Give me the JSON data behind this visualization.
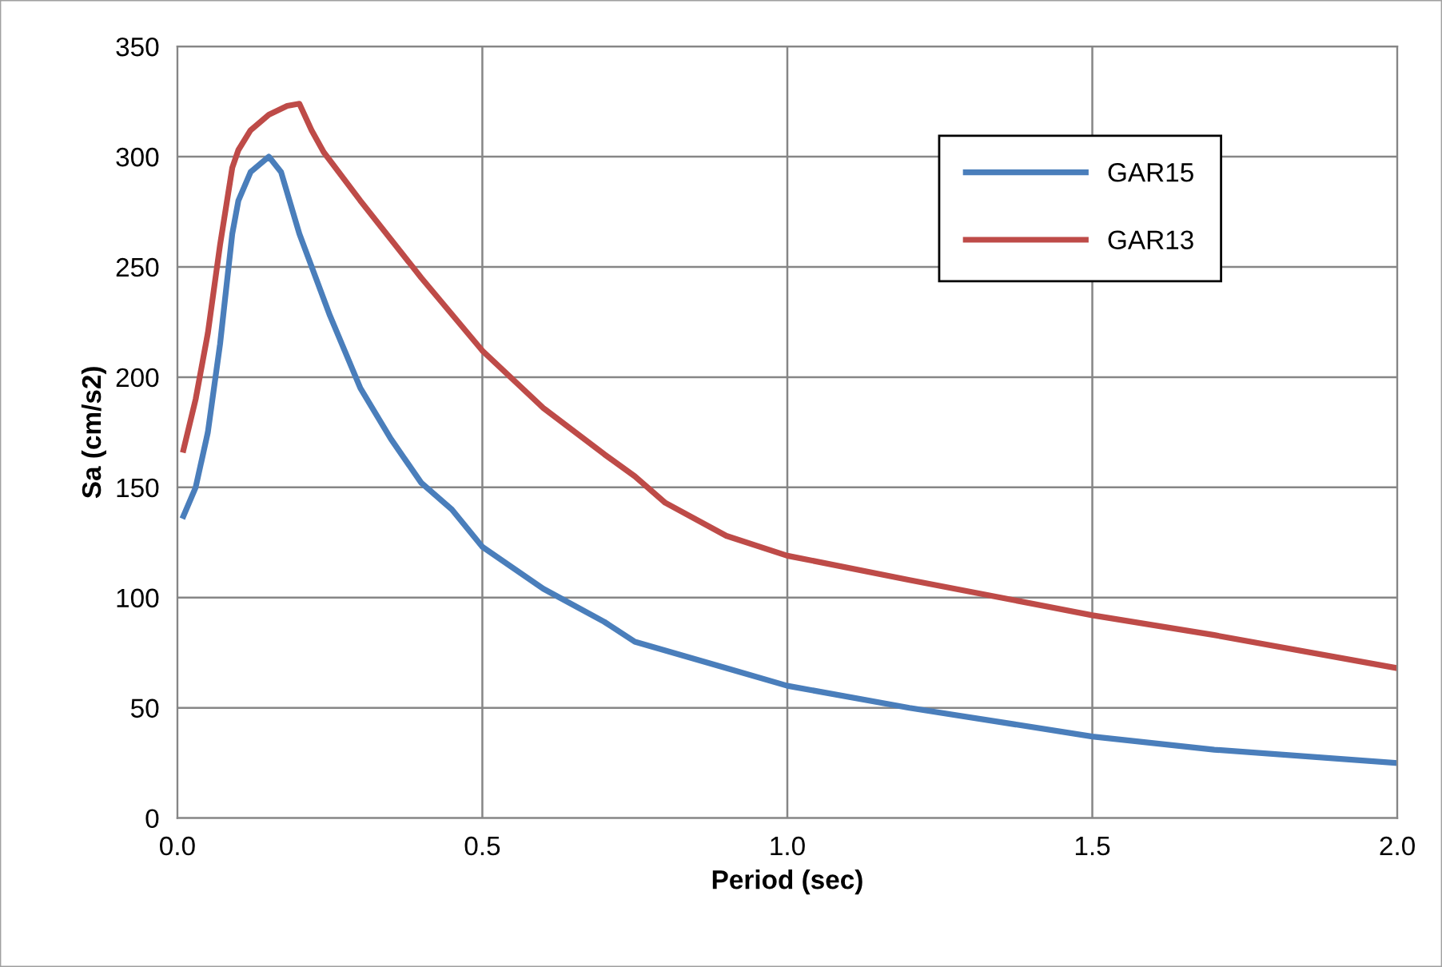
{
  "chart_data": {
    "type": "line",
    "xlabel": "Period (sec)",
    "ylabel": "Sa (cm/s2)",
    "xlim": [
      0,
      2
    ],
    "xticks": [
      {
        "value": 0,
        "label": "0.0"
      },
      {
        "value": 0.5,
        "label": "0.5"
      },
      {
        "value": 1,
        "label": "1.0"
      },
      {
        "value": 1.5,
        "label": "1.5"
      },
      {
        "value": 2,
        "label": "2.0"
      }
    ],
    "ylim": [
      0,
      350
    ],
    "yticks": [
      0,
      50,
      100,
      150,
      200,
      250,
      300,
      350
    ],
    "grid": true,
    "legend": "top right",
    "marker": "none",
    "line_style": "solid",
    "series": [
      {
        "name": "GAR15",
        "color": "#4a7ebb",
        "x": [
          0.01,
          0.03,
          0.05,
          0.07,
          0.09,
          0.1,
          0.12,
          0.15,
          0.17,
          0.2,
          0.25,
          0.3,
          0.35,
          0.4,
          0.45,
          0.5,
          0.6,
          0.7,
          0.75,
          0.8,
          0.9,
          1.0,
          1.2,
          1.5,
          1.7,
          2.0
        ],
        "values": [
          137,
          150,
          175,
          215,
          265,
          280,
          293,
          300,
          293,
          265,
          228,
          195,
          172,
          152,
          140,
          123,
          104,
          89,
          80,
          76,
          68,
          60,
          50,
          37,
          31,
          25
        ]
      },
      {
        "name": "GAR13",
        "color": "#be4b48",
        "x": [
          0.01,
          0.03,
          0.05,
          0.07,
          0.09,
          0.1,
          0.12,
          0.15,
          0.18,
          0.2,
          0.22,
          0.24,
          0.3,
          0.4,
          0.5,
          0.6,
          0.7,
          0.75,
          0.8,
          0.9,
          1.0,
          1.2,
          1.5,
          1.7,
          2.0
        ],
        "values": [
          167,
          190,
          220,
          260,
          295,
          303,
          312,
          319,
          323,
          324,
          312,
          302,
          280,
          245,
          212,
          186,
          165,
          155,
          143,
          128,
          119,
          108,
          92,
          83,
          68
        ]
      }
    ]
  }
}
